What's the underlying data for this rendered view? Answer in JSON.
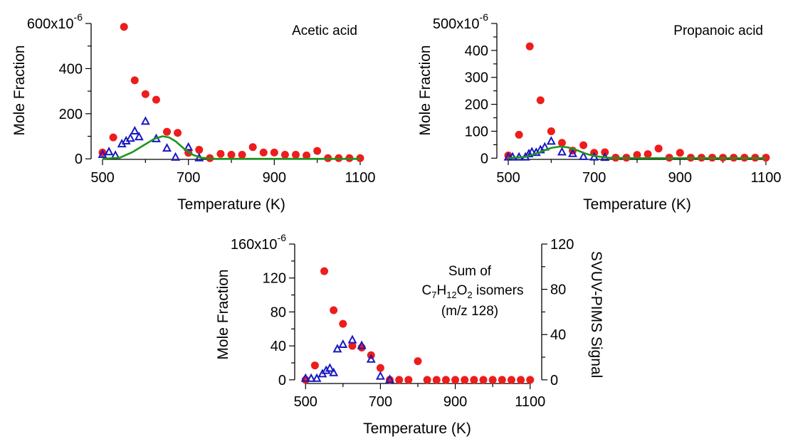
{
  "chart_data": [
    {
      "type": "scatter",
      "annotation": "Acetic acid",
      "xlabel": "Temperature (K)",
      "ylabel": "Mole Fraction",
      "y_exponent_label": "x10",
      "y_exponent": "-6",
      "xlim": [
        490,
        1110
      ],
      "ylim": [
        -15,
        600
      ],
      "xticks": [
        500,
        700,
        900,
        1100
      ],
      "yticks": [
        0,
        200,
        400,
        600
      ],
      "grid": false,
      "series": [
        {
          "marker": "filled-circle",
          "color": "#ee1c1c",
          "x": [
            500,
            525,
            550,
            575,
            600,
            625,
            650,
            675,
            700,
            725,
            750,
            775,
            800,
            825,
            850,
            875,
            900,
            925,
            950,
            975,
            1000,
            1025,
            1050,
            1075,
            1100
          ],
          "y": [
            28,
            95,
            585,
            348,
            287,
            262,
            120,
            115,
            27,
            40,
            3,
            22,
            18,
            18,
            52,
            28,
            28,
            18,
            18,
            15,
            35,
            3,
            3,
            3,
            3
          ]
        },
        {
          "marker": "open-triangle",
          "color": "#1818c0",
          "x": [
            500,
            515,
            530,
            545,
            555,
            565,
            575,
            585,
            600,
            625,
            650,
            670,
            700,
            725
          ],
          "y": [
            18,
            30,
            14,
            65,
            78,
            90,
            122,
            96,
            165,
            88,
            46,
            6,
            50,
            3
          ]
        },
        {
          "marker": "line",
          "color": "#1e941e",
          "x": [
            500,
            540,
            570,
            600,
            620,
            640,
            655,
            670,
            690,
            710,
            730,
            760,
            800,
            1100
          ],
          "y": [
            0,
            5,
            30,
            65,
            88,
            100,
            95,
            78,
            45,
            18,
            5,
            0.5,
            0,
            0
          ]
        }
      ]
    },
    {
      "type": "scatter",
      "annotation": "Propanoic acid",
      "xlabel": "Temperature (K)",
      "ylabel": "Mole Fraction",
      "y_exponent_label": "x10",
      "y_exponent": "-6",
      "xlim": [
        490,
        1110
      ],
      "ylim": [
        -15,
        500
      ],
      "xticks": [
        500,
        700,
        900,
        1100
      ],
      "yticks": [
        0,
        100,
        200,
        300,
        400,
        500
      ],
      "grid": false,
      "series": [
        {
          "marker": "filled-circle",
          "color": "#ee1c1c",
          "x": [
            500,
            525,
            550,
            575,
            600,
            625,
            650,
            675,
            700,
            725,
            750,
            775,
            800,
            825,
            850,
            875,
            900,
            925,
            950,
            975,
            1000,
            1025,
            1050,
            1075,
            1100
          ],
          "y": [
            10,
            87,
            415,
            215,
            100,
            57,
            28,
            48,
            20,
            22,
            2,
            2,
            12,
            15,
            36,
            2,
            20,
            2,
            2,
            2,
            2,
            2,
            2,
            2,
            2
          ]
        },
        {
          "marker": "open-triangle",
          "color": "#1818c0",
          "x": [
            500,
            510,
            525,
            540,
            548,
            555,
            565,
            575,
            585,
            600,
            625,
            650,
            675,
            700,
            725
          ],
          "y": [
            3,
            3,
            3,
            3,
            15,
            22,
            20,
            30,
            40,
            62,
            22,
            16,
            5,
            3,
            2
          ]
        },
        {
          "marker": "line",
          "color": "#1e941e",
          "x": [
            500,
            540,
            570,
            600,
            620,
            640,
            660,
            680,
            700,
            730,
            760,
            800,
            1100
          ],
          "y": [
            0,
            5,
            20,
            38,
            43,
            40,
            30,
            17,
            8,
            2,
            0.5,
            0,
            0
          ]
        }
      ]
    },
    {
      "type": "scatter",
      "annotation": [
        "Sum of",
        "C7H12O2 isomers",
        "(m/z 128)"
      ],
      "annotation_formula": {
        "C": "C",
        "c_sub": "7",
        "H": "H",
        "h_sub": "12",
        "O": "O",
        "o_sub": "2",
        "rest": " isomers"
      },
      "xlabel": "Temperature (K)",
      "ylabel": "Mole Fraction",
      "y2label": "SVUV-PIMS Signal",
      "y_exponent_label": "x10",
      "y_exponent": "-6",
      "xlim": [
        490,
        1110
      ],
      "ylim": [
        -6,
        160
      ],
      "y2lim": [
        -4.5,
        120
      ],
      "xticks": [
        500,
        700,
        900,
        1100
      ],
      "yticks": [
        0,
        40,
        80,
        120,
        160
      ],
      "y2ticks": [
        0,
        40,
        80,
        120
      ],
      "grid": false,
      "series": [
        {
          "marker": "filled-circle",
          "color": "#ee1c1c",
          "axis": "left",
          "x": [
            500,
            525,
            550,
            575,
            600,
            625,
            650,
            675,
            700,
            725,
            750,
            775,
            800,
            825,
            850,
            875,
            900,
            925,
            950,
            975,
            1000,
            1025,
            1050,
            1075,
            1100
          ],
          "y": [
            0,
            17,
            128,
            82,
            66,
            40,
            38,
            29,
            14,
            0,
            0,
            0,
            22,
            0,
            0,
            0,
            0,
            0,
            0,
            0,
            0,
            0,
            0,
            0,
            0
          ]
        },
        {
          "marker": "open-triangle",
          "color": "#1818c0",
          "axis": "right",
          "x": [
            500,
            515,
            530,
            545,
            555,
            565,
            575,
            585,
            600,
            625,
            650,
            675,
            700,
            725
          ],
          "y": [
            1,
            1,
            1,
            5,
            8,
            10,
            6,
            27,
            31,
            35,
            30,
            18,
            3,
            0
          ]
        }
      ]
    }
  ]
}
